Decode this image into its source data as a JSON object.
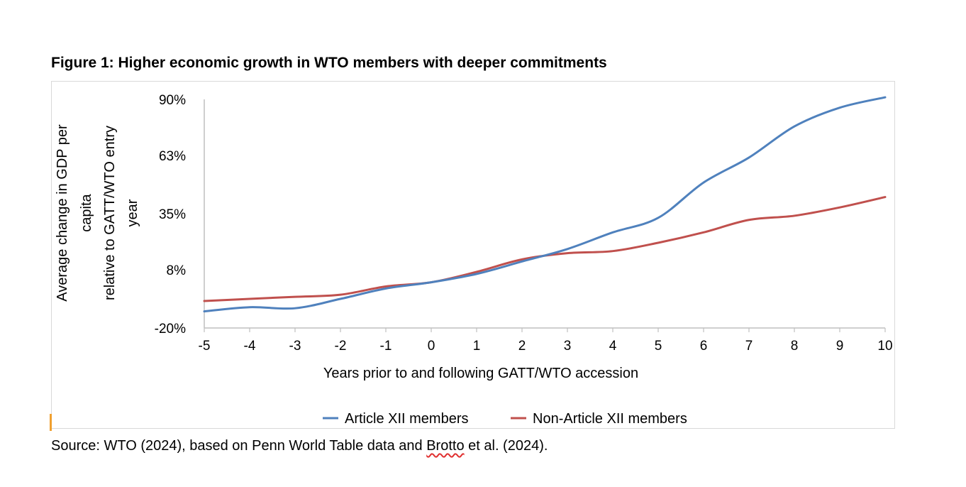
{
  "figure": {
    "title": "Figure 1: Higher economic growth in WTO members with deeper commitments",
    "source_prefix": "Source: WTO (2024), based on Penn World Table data and ",
    "source_flagged": "Brotto",
    "source_suffix": " et al. (2024)."
  },
  "chart_data": {
    "type": "line",
    "title": "",
    "xlabel": "Years prior to and following GATT/WTO accession",
    "ylabel_lines": [
      "Average change in GDP per",
      "capita",
      "relative to GATT/WTO entry",
      "year"
    ],
    "x": [
      -5,
      -4,
      -3,
      -2,
      -1,
      0,
      1,
      2,
      3,
      4,
      5,
      6,
      7,
      8,
      9,
      10
    ],
    "x_tick_labels": [
      "-5",
      "-4",
      "-3",
      "-2",
      "-1",
      "0",
      "1",
      "2",
      "3",
      "4",
      "5",
      "6",
      "7",
      "8",
      "9",
      "10"
    ],
    "y_ticks": [
      -20,
      8,
      35,
      63,
      90
    ],
    "y_tick_labels": [
      "-20%",
      "8%",
      "35%",
      "63%",
      "90%"
    ],
    "ylim": [
      -20,
      90
    ],
    "xlim": [
      -5,
      10
    ],
    "grid": false,
    "legend_position": "bottom",
    "series": [
      {
        "name": "Article XII members",
        "color": "#4f81bd",
        "values": [
          -12,
          -10,
          -10.5,
          -6,
          -1,
          2,
          6,
          12,
          18,
          26,
          33,
          50,
          62,
          77,
          86,
          91
        ]
      },
      {
        "name": "Non-Article XII members",
        "color": "#c0504d",
        "values": [
          -7,
          -6,
          -5,
          -4,
          0,
          2,
          7,
          13,
          16,
          17,
          21,
          26,
          32,
          34,
          38,
          43
        ]
      }
    ]
  }
}
